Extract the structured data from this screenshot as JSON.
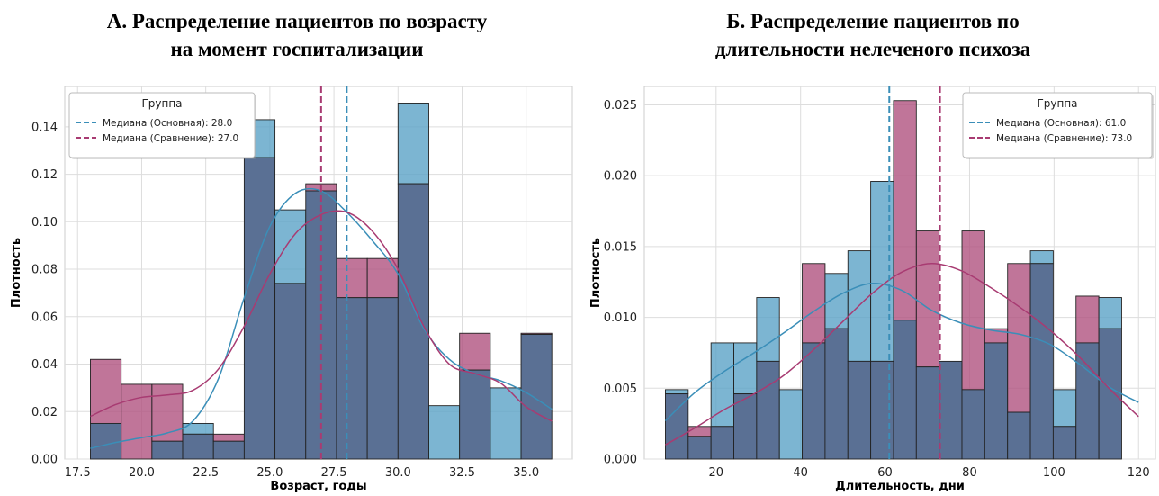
{
  "colors": {
    "main": "#5ba3c7",
    "compare": "#b0527f",
    "overlap": "#5a7094",
    "main_line": "#3a8eb8",
    "compare_line": "#a83b72",
    "grid": "#dddddd"
  },
  "chart_data": [
    {
      "type": "histogram",
      "title": "А. Распределение пациентов по возрасту на момент госпитализации",
      "title_lines": [
        "А. Распределение пациентов по возрасту",
        "на момент госпитализации"
      ],
      "xlabel": "Возраст, годы",
      "ylabel": "Плотность",
      "xlim": [
        17.0,
        36.8
      ],
      "ylim": [
        0,
        0.157
      ],
      "xticks": [
        17.5,
        20.0,
        22.5,
        25.0,
        27.5,
        30.0,
        32.5,
        35.0
      ],
      "xtick_labels": [
        "17.5",
        "20.0",
        "22.5",
        "25.0",
        "27.5",
        "30.0",
        "32.5",
        "35.0"
      ],
      "yticks": [
        0,
        0.02,
        0.04,
        0.06,
        0.08,
        0.1,
        0.12,
        0.14
      ],
      "ytick_labels": [
        "0.00",
        "0.02",
        "0.04",
        "0.06",
        "0.08",
        "0.10",
        "0.12",
        "0.14"
      ],
      "bin_edges": [
        18.0,
        19.2,
        20.4,
        21.6,
        22.8,
        24.0,
        25.2,
        26.4,
        27.6,
        28.8,
        30.0,
        31.2,
        32.4,
        33.6,
        34.8,
        36.0
      ],
      "series": [
        {
          "name": "Основная",
          "values": [
            0.015,
            0.0,
            0.0075,
            0.015,
            0.0075,
            0.143,
            0.105,
            0.113,
            0.068,
            0.068,
            0.15,
            0.0225,
            0.0375,
            0.03,
            0.0525
          ]
        },
        {
          "name": "Сравнение",
          "values": [
            0.042,
            0.0315,
            0.0315,
            0.0105,
            0.0105,
            0.127,
            0.074,
            0.116,
            0.0845,
            0.0845,
            0.116,
            0.0,
            0.053,
            0.0,
            0.053
          ]
        }
      ],
      "kde": [
        {
          "name": "Основная",
          "x": [
            18,
            19,
            20,
            21,
            22,
            23,
            24,
            25,
            26,
            27,
            28,
            29,
            30,
            31,
            32,
            33,
            34,
            35,
            36
          ],
          "y": [
            0.0045,
            0.007,
            0.009,
            0.011,
            0.016,
            0.034,
            0.068,
            0.098,
            0.112,
            0.113,
            0.104,
            0.092,
            0.078,
            0.055,
            0.042,
            0.036,
            0.033,
            0.028,
            0.021
          ]
        },
        {
          "name": "Сравнение",
          "x": [
            18,
            19,
            20,
            21,
            22,
            23,
            24,
            25,
            26,
            27,
            28,
            29,
            30,
            31,
            32,
            33,
            34,
            35,
            36
          ],
          "y": [
            0.018,
            0.023,
            0.026,
            0.027,
            0.029,
            0.038,
            0.056,
            0.078,
            0.095,
            0.103,
            0.104,
            0.096,
            0.08,
            0.056,
            0.04,
            0.036,
            0.032,
            0.022,
            0.016
          ]
        }
      ],
      "medians": [
        {
          "label": "Медиана (Основная): 28.0",
          "value": 28.0,
          "series": "main"
        },
        {
          "label": "Медиана (Сравнение): 27.0",
          "value": 27.0,
          "series": "compare"
        }
      ],
      "legend_title": "Группа",
      "legend_position": "top-left",
      "grid": true
    },
    {
      "type": "histogram",
      "title": "Б. Распределение пациентов по длительности нелеченого психоза",
      "title_lines": [
        "Б. Распределение пациентов по",
        "длительности нелеченого психоза"
      ],
      "xlabel": "Длительность, дни",
      "ylabel": "Плотность",
      "xlim": [
        3,
        124
      ],
      "ylim": [
        0,
        0.0263
      ],
      "xticks": [
        20,
        40,
        60,
        80,
        100,
        120
      ],
      "xtick_labels": [
        "20",
        "40",
        "60",
        "80",
        "100",
        "120"
      ],
      "yticks": [
        0,
        0.005,
        0.01,
        0.015,
        0.02,
        0.025
      ],
      "ytick_labels": [
        "0.000",
        "0.005",
        "0.010",
        "0.015",
        "0.020",
        "0.025"
      ],
      "bin_edges": [
        8.0,
        13.4,
        18.8,
        24.2,
        29.6,
        35.0,
        40.4,
        45.8,
        51.2,
        56.6,
        62.0,
        67.4,
        72.8,
        78.2,
        83.6,
        89.0,
        94.4,
        99.8,
        105.2,
        110.6,
        116.0,
        121.4
      ],
      "series": [
        {
          "name": "Основная",
          "values": [
            0.0049,
            0.0016,
            0.0082,
            0.0082,
            0.0114,
            0.0049,
            0.0082,
            0.0131,
            0.0147,
            0.0196,
            0.0098,
            0.0065,
            0.0069,
            0.0049,
            0.0082,
            0.0033,
            0.0147,
            0.0049,
            0.0082,
            0.0114
          ]
        },
        {
          "name": "Сравнение",
          "values": [
            0.0046,
            0.0023,
            0.0023,
            0.0046,
            0.0069,
            0.0,
            0.0138,
            0.0092,
            0.0069,
            0.0069,
            0.0253,
            0.0161,
            0.0069,
            0.0161,
            0.0092,
            0.0138,
            0.0138,
            0.0023,
            0.0115,
            0.0092
          ]
        }
      ],
      "kde": [
        {
          "name": "Основная",
          "x": [
            8,
            15,
            22,
            29,
            36,
            43,
            50,
            57,
            64,
            71,
            78,
            85,
            92,
            99,
            106,
            113,
            120
          ],
          "y": [
            0.0027,
            0.0047,
            0.0062,
            0.0075,
            0.0089,
            0.0104,
            0.0117,
            0.0124,
            0.0119,
            0.0105,
            0.0096,
            0.0091,
            0.0088,
            0.0081,
            0.0067,
            0.0051,
            0.004
          ]
        },
        {
          "name": "Сравнение",
          "x": [
            8,
            15,
            22,
            29,
            36,
            43,
            50,
            57,
            64,
            71,
            78,
            85,
            92,
            99,
            106,
            113,
            120
          ],
          "y": [
            0.001,
            0.0022,
            0.0035,
            0.0046,
            0.0059,
            0.0077,
            0.0097,
            0.0117,
            0.0132,
            0.0138,
            0.0133,
            0.0121,
            0.0107,
            0.0091,
            0.0072,
            0.005,
            0.003
          ]
        }
      ],
      "medians": [
        {
          "label": "Медиана (Основная): 61.0",
          "value": 61.0,
          "series": "main"
        },
        {
          "label": "Медиана (Сравнение): 73.0",
          "value": 73.0,
          "series": "compare"
        }
      ],
      "legend_title": "Группа",
      "legend_position": "top-right",
      "grid": true
    }
  ]
}
